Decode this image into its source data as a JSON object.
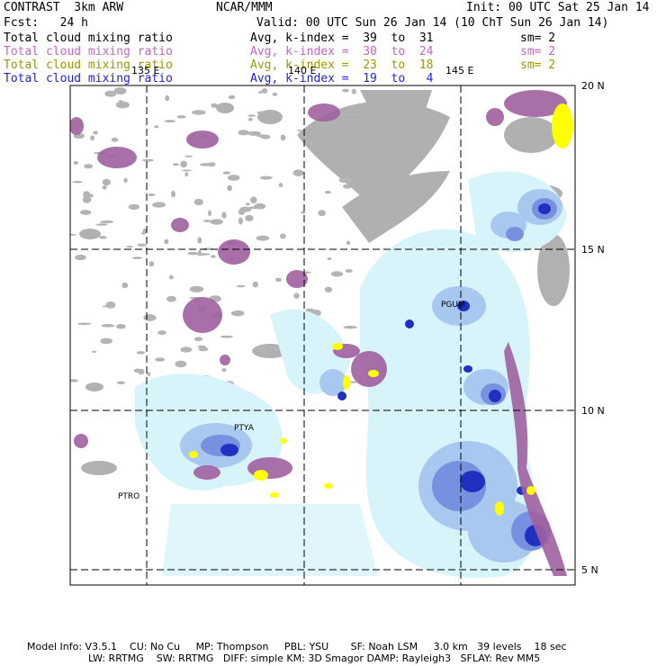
{
  "header": {
    "title": "CONTRAST  3km ARW",
    "center": "NCAR/MMM",
    "init": "Init: 00 UTC Sat 25 Jan 14",
    "fcst": "Fcst:   24 h",
    "valid": "Valid: 00 UTC Sun 26 Jan 14 (10 ChT Sun 26 Jan 14)"
  },
  "fields": [
    {
      "name": "Total cloud mixing ratio",
      "avg": "Avg, k-index =  39  to  31",
      "sm": "sm= 2",
      "color": "#000000"
    },
    {
      "name": "Total cloud mixing ratio",
      "avg": "Avg, k-index =  30  to  24",
      "sm": "sm= 2",
      "color": "#c466c4"
    },
    {
      "name": "Total cloud mixing ratio",
      "avg": "Avg, k-index =  23  to  18",
      "sm": "sm= 2",
      "color": "#999900"
    },
    {
      "name": "Total cloud mixing ratio",
      "avg": "Avg, k-index =  19  to   4",
      "sm": "",
      "color": "#2222dd"
    }
  ],
  "lon_labels": [
    "135 E",
    "140 E",
    "145 E"
  ],
  "lat_labels": [
    "20 N",
    "15 N",
    "10 N",
    "5 N"
  ],
  "stations": [
    "PGUM",
    "PTYA",
    "PTRO"
  ],
  "footer": {
    "line1": "Model Info: V3.5.1    CU: No Cu     MP: Thompson     PBL: YSU       SF: Noah LSM     3.0 km   39 levels    18 sec",
    "line2": "LW: RRTMG    SW: RRTMG   DIFF: simple KM: 3D Smagor DAMP: Rayleigh3   SFLAY: Rev MM5"
  },
  "colors": {
    "gray_cloud": "#a8a8a8",
    "purple_cloud": "#a060a0",
    "yellow_cloud": "#ffff00",
    "light_blue": "#d8f4fb",
    "mid_blue": "#a8c8f0",
    "dark_blue": "#2030c0"
  }
}
